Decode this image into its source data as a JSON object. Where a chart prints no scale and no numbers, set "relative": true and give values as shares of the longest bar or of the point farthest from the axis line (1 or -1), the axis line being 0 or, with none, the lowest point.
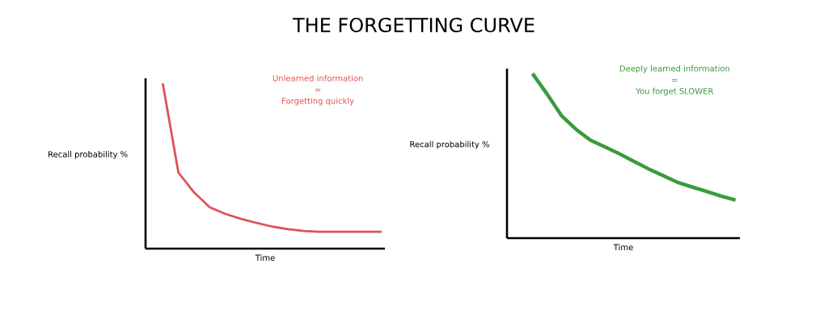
{
  "chart_data": [
    {
      "type": "line",
      "title": "THE FORGETTING CURVE",
      "xlabel": "Time",
      "ylabel": "Recall probability %",
      "relative": true,
      "color": "#e05252",
      "categories": [
        null,
        null,
        null,
        null,
        null,
        null,
        null,
        null,
        null,
        null,
        null,
        null,
        null,
        null,
        null
      ],
      "values": [
        1.0,
        0.46,
        0.34,
        0.25,
        0.21,
        0.18,
        0.155,
        0.133,
        0.118,
        0.107,
        0.102,
        0.102,
        0.102,
        0.102,
        0.102
      ],
      "annotations": [
        "Unlearned information",
        "=",
        "Forgetting quickly"
      ]
    },
    {
      "type": "line",
      "xlabel": "Time",
      "ylabel": "Recall probability %",
      "relative": true,
      "color": "#3a9a3a",
      "categories": [
        null,
        null,
        null,
        null,
        null,
        null,
        null,
        null,
        null,
        null,
        null,
        null,
        null,
        null,
        null
      ],
      "values": [
        1.0,
        0.876,
        0.744,
        0.661,
        0.595,
        0.554,
        0.512,
        0.466,
        0.421,
        0.38,
        0.339,
        0.311,
        0.284,
        0.256,
        0.231
      ],
      "annotations": [
        "Deeply learned information",
        "=",
        "You forget SLOWER"
      ]
    }
  ]
}
